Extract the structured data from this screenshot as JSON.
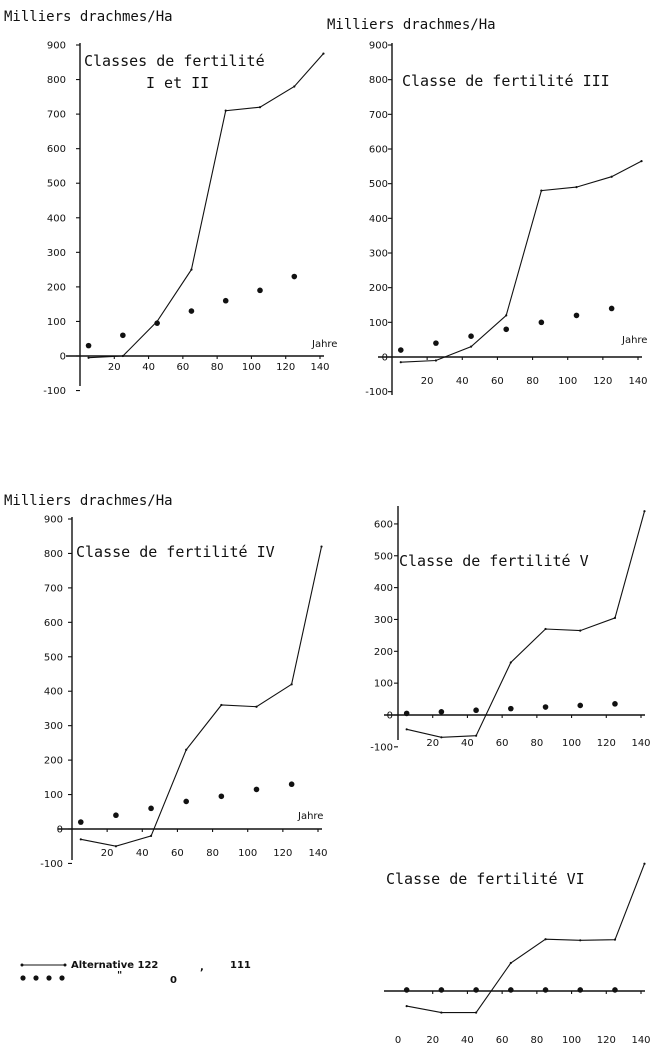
{
  "chart_data": [
    {
      "type": "line",
      "ylabel": "Milliers drachmes/Ha",
      "title_lines": [
        "Classes de fertilité",
        "I et II"
      ],
      "xlabel": "Jahre",
      "yticks": [
        -100,
        0,
        100,
        200,
        300,
        400,
        500,
        600,
        700,
        800,
        900
      ],
      "xticks": [
        20,
        40,
        60,
        80,
        100,
        120,
        140
      ],
      "ylim": [
        -100,
        900
      ],
      "xlim": [
        0,
        140
      ],
      "series": [
        {
          "style": "line",
          "x": [
            5,
            25,
            45,
            65,
            85,
            105,
            125,
            142
          ],
          "y": [
            -5,
            0,
            100,
            250,
            710,
            720,
            780,
            875
          ]
        },
        {
          "style": "dots",
          "x": [
            5,
            25,
            45,
            65,
            85,
            105,
            125
          ],
          "y": [
            30,
            60,
            95,
            130,
            160,
            190,
            230
          ]
        }
      ]
    },
    {
      "type": "line",
      "ylabel": "Milliers drachmes/Ha",
      "title_lines": [
        "Classe de fertilité III"
      ],
      "xlabel": "Jahre",
      "yticks": [
        -100,
        0,
        100,
        200,
        300,
        400,
        500,
        600,
        700,
        800,
        900
      ],
      "xticks": [
        20,
        40,
        60,
        80,
        100,
        120,
        140
      ],
      "ylim": [
        -100,
        900
      ],
      "xlim": [
        0,
        140
      ],
      "series": [
        {
          "style": "line",
          "x": [
            5,
            25,
            45,
            65,
            85,
            105,
            125,
            142
          ],
          "y": [
            -15,
            -10,
            30,
            120,
            480,
            490,
            520,
            565
          ]
        },
        {
          "style": "dots",
          "x": [
            5,
            25,
            45,
            65,
            85,
            105,
            125
          ],
          "y": [
            20,
            40,
            60,
            80,
            100,
            120,
            140
          ]
        }
      ]
    },
    {
      "type": "line",
      "ylabel": "Milliers drachmes/Ha",
      "title_lines": [
        "Classe de fertilité IV"
      ],
      "xlabel": "Jahre",
      "yticks": [
        -100,
        0,
        100,
        200,
        300,
        400,
        500,
        600,
        700,
        800,
        900
      ],
      "xticks": [
        20,
        40,
        60,
        80,
        100,
        120,
        140
      ],
      "ylim": [
        -100,
        900
      ],
      "xlim": [
        0,
        140
      ],
      "series": [
        {
          "style": "line",
          "x": [
            5,
            25,
            45,
            65,
            85,
            105,
            125,
            142
          ],
          "y": [
            -30,
            -50,
            -20,
            230,
            360,
            355,
            420,
            820
          ]
        },
        {
          "style": "dots",
          "x": [
            5,
            25,
            45,
            65,
            85,
            105,
            125
          ],
          "y": [
            20,
            40,
            60,
            80,
            95,
            115,
            130
          ]
        }
      ]
    },
    {
      "type": "line",
      "ylabel": "",
      "title_lines": [
        "Classe de fertilité V"
      ],
      "xlabel": "",
      "yticks": [
        -100,
        0,
        100,
        200,
        300,
        400,
        500,
        600
      ],
      "ytick_labels": [
        "-100",
        "0",
        "100",
        "200",
        "300",
        "400",
        "500",
        "600"
      ],
      "xticks": [
        20,
        40,
        60,
        80,
        100,
        120,
        140
      ],
      "ylim": [
        -100,
        650
      ],
      "xlim": [
        0,
        140
      ],
      "series": [
        {
          "style": "line",
          "x": [
            5,
            25,
            45,
            65,
            85,
            105,
            125,
            142
          ],
          "y": [
            -45,
            -70,
            -65,
            165,
            270,
            265,
            305,
            640
          ]
        },
        {
          "style": "dots",
          "x": [
            5,
            25,
            45,
            65,
            85,
            105,
            125
          ],
          "y": [
            5,
            10,
            15,
            20,
            25,
            30,
            35
          ]
        }
      ]
    },
    {
      "type": "line",
      "ylabel": "",
      "title_lines": [
        "Classe de fertilité VI"
      ],
      "xlabel": "",
      "yticks": [],
      "xticks": [
        0,
        20,
        40,
        60,
        80,
        100,
        120,
        140
      ],
      "ylim": [
        -100,
        700
      ],
      "xlim": [
        0,
        140
      ],
      "series": [
        {
          "style": "line",
          "x": [
            5,
            25,
            45,
            65,
            85,
            105,
            125,
            142
          ],
          "y": [
            -70,
            -100,
            -100,
            130,
            240,
            235,
            238,
            590
          ]
        },
        {
          "style": "dots",
          "x": [
            5,
            25,
            45,
            65,
            85,
            105,
            125
          ],
          "y": [
            5,
            5,
            5,
            5,
            5,
            5,
            5
          ]
        }
      ]
    }
  ],
  "legend": {
    "line_label": "Alternative 122",
    "line_sep": ",",
    "line_suffix": "111",
    "dots_label": "\"",
    "dots_value": "0"
  }
}
